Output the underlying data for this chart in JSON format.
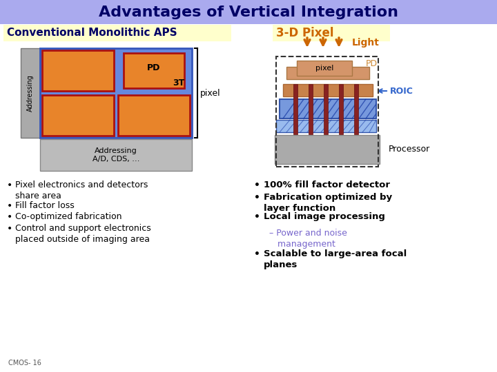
{
  "title": "Advantages of Vertical Integration",
  "title_bg_top": "#aaaaee",
  "title_bg_bot": "#8888cc",
  "title_color": "#000066",
  "bg_color": "#ffffff",
  "left_header": "Conventional Monolithic APS",
  "left_header_bg": "#ffffcc",
  "left_header_color": "#000066",
  "right_header": "3-D Pixel",
  "right_header_bg": "#ffffcc",
  "right_header_color": "#cc6600",
  "left_bullets": [
    "Pixel electronics and detectors\nshare area",
    "Fill factor loss",
    "Co-optimized fabrication",
    "Control and support electronics\nplaced outside of imaging area"
  ],
  "right_bullets_bold": [
    "100% fill factor detector",
    "Fabrication optimized by\nlayer function",
    "Local image processing"
  ],
  "right_sub_bullet": "– Power and noise\n   management",
  "right_last_bullet": "Scalable to large-area focal\nplanes",
  "footer": "CMOS- 16",
  "light_color": "#cc6600",
  "roic_color": "#3366cc",
  "pd_label_color": "#cc8833",
  "processor_color": "#666666",
  "orange_color": "#e8842a",
  "blue_color": "#6688dd",
  "blue_light": "#99aaee",
  "red_color": "#aa1111",
  "dark_navy": "#000066",
  "gray_color": "#999999",
  "sub_bullet_color": "#7766cc"
}
